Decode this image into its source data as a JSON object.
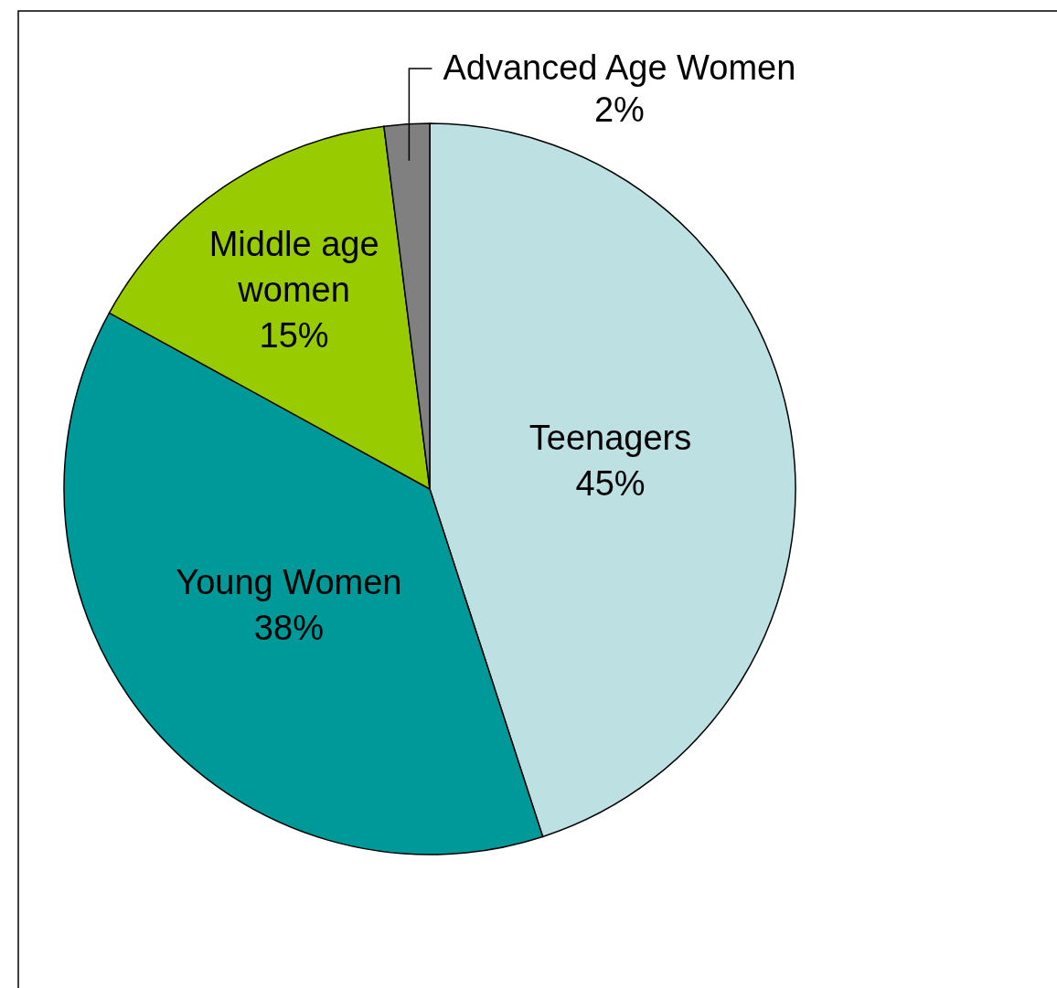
{
  "chart_data": {
    "type": "pie",
    "categories": [
      "Teenagers",
      "Young Women",
      "Middle age women",
      "Advanced Age Women"
    ],
    "values": [
      45,
      38,
      15,
      2
    ],
    "value_labels": [
      "45%",
      "38%",
      "15%",
      "2%"
    ],
    "colors": [
      "#bde0e3",
      "#009999",
      "#99cc00",
      "#808080"
    ]
  }
}
